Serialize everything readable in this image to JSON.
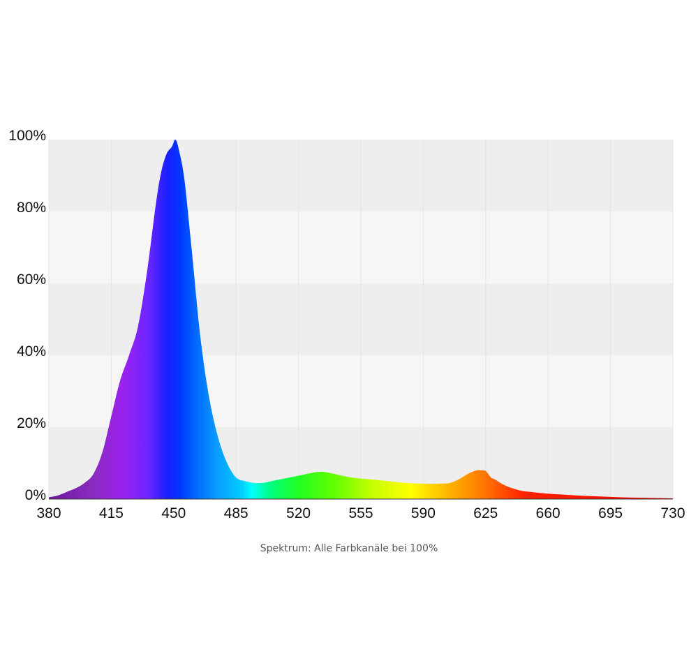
{
  "chart_data": {
    "type": "area",
    "title": "",
    "xlabel": "",
    "ylabel": "",
    "xlim": [
      380,
      730
    ],
    "ylim": [
      0,
      100
    ],
    "x_ticks": [
      380,
      415,
      450,
      485,
      520,
      555,
      590,
      625,
      660,
      695,
      730
    ],
    "y_ticks": [
      0,
      20,
      40,
      60,
      80,
      100
    ],
    "x_tick_labels": [
      "380",
      "415",
      "450",
      "485",
      "520",
      "555",
      "590",
      "625",
      "660",
      "695",
      "730"
    ],
    "y_tick_labels": [
      "0%",
      "20%",
      "40%",
      "60%",
      "80%",
      "100%"
    ],
    "grid": "alternating horizontal bands",
    "fill": "visible spectrum color gradient",
    "series": [
      {
        "x": [
          380,
          385,
          390,
          395,
          400,
          405,
          410,
          415,
          420,
          425,
          430,
          435,
          440,
          443,
          446,
          449,
          451,
          453,
          456,
          460,
          465,
          470,
          475,
          480,
          485,
          490,
          495,
          500,
          505,
          510,
          520,
          530,
          535,
          540,
          550,
          560,
          570,
          580,
          590,
          600,
          605,
          610,
          615,
          620,
          622,
          625,
          628,
          630,
          635,
          640,
          645,
          650,
          660,
          670,
          680,
          690,
          700,
          710,
          720,
          730
        ],
        "y": [
          0.5,
          1,
          2,
          3,
          4.5,
          7,
          13,
          23,
          33,
          40,
          48,
          63,
          82,
          91,
          96,
          98,
          100,
          97,
          89,
          70,
          45,
          28,
          17,
          10,
          6,
          5,
          4.5,
          4.5,
          5,
          5.5,
          6.5,
          7.5,
          7.5,
          7,
          6,
          5.5,
          5,
          4.5,
          4.3,
          4.3,
          4.5,
          5.5,
          7,
          8,
          8,
          7.8,
          6,
          5.5,
          4,
          3,
          2.3,
          2,
          1.5,
          1.2,
          0.9,
          0.7,
          0.5,
          0.4,
          0.3,
          0.2
        ]
      }
    ]
  },
  "caption": "Spektrum: Alle Farbkanäle bei 100%",
  "colors": {
    "band_dark": "#eeeeee",
    "band_light": "#f6f6f6",
    "gridline": "#e4e4e4",
    "axis": "#333333"
  }
}
